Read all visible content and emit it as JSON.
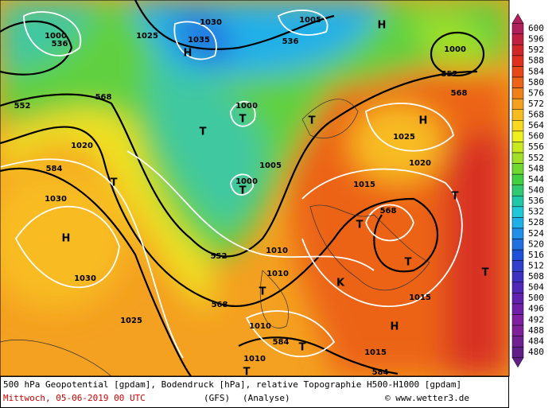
{
  "map": {
    "labels": [
      {
        "text": "536"
      },
      {
        "text": "1000"
      },
      {
        "text": "552"
      },
      {
        "text": "568"
      },
      {
        "text": "1035"
      },
      {
        "text": "H"
      },
      {
        "text": "1030"
      },
      {
        "text": "1025"
      },
      {
        "text": "536"
      },
      {
        "text": "1005"
      },
      {
        "text": "H"
      },
      {
        "text": "1000"
      },
      {
        "text": "552"
      },
      {
        "text": "568"
      },
      {
        "text": "H"
      },
      {
        "text": "1025"
      },
      {
        "text": "1000"
      },
      {
        "text": "T"
      },
      {
        "text": "T"
      },
      {
        "text": "T"
      },
      {
        "text": "1020"
      },
      {
        "text": "584"
      },
      {
        "text": "T"
      },
      {
        "text": "1030"
      },
      {
        "text": "H"
      },
      {
        "text": "1030"
      },
      {
        "text": "1025"
      },
      {
        "text": "T"
      },
      {
        "text": "1000"
      },
      {
        "text": "1005"
      },
      {
        "text": "1015"
      },
      {
        "text": "1020"
      },
      {
        "text": "T"
      },
      {
        "text": "568"
      },
      {
        "text": "T"
      },
      {
        "text": "552"
      },
      {
        "text": "1010"
      },
      {
        "text": "1010"
      },
      {
        "text": "T"
      },
      {
        "text": "K"
      },
      {
        "text": "T"
      },
      {
        "text": "568"
      },
      {
        "text": "1015"
      },
      {
        "text": "T"
      },
      {
        "text": "H"
      },
      {
        "text": "1010"
      },
      {
        "text": "584"
      },
      {
        "text": "T"
      },
      {
        "text": "1015"
      },
      {
        "text": "1010"
      },
      {
        "text": "584"
      },
      {
        "text": "T"
      }
    ]
  },
  "colorbar": {
    "levels": [
      600,
      596,
      592,
      588,
      584,
      580,
      576,
      572,
      568,
      564,
      560,
      556,
      552,
      548,
      544,
      540,
      536,
      532,
      528,
      524,
      520,
      516,
      512,
      508,
      504,
      500,
      496,
      492,
      488,
      484,
      480
    ],
    "colors": [
      "#b0205a",
      "#c02040",
      "#d02828",
      "#e03020",
      "#e84818",
      "#ec6418",
      "#f08018",
      "#f4a020",
      "#f8bc20",
      "#f8d820",
      "#f0f020",
      "#c8e820",
      "#a0e028",
      "#70d830",
      "#40d040",
      "#30c870",
      "#20c8a8",
      "#20c8d8",
      "#20b0e8",
      "#2090e8",
      "#2070e0",
      "#2050d8",
      "#3040c8",
      "#4030c0",
      "#5028b8",
      "#6020b0",
      "#7020a8",
      "#8020a0",
      "#802098",
      "#702090",
      "#602088"
    ]
  },
  "caption": {
    "line1": "500 hPa Geopotential [gpdam], Bodendruck [hPa], relative Topographie H500-H1000 [gpdam]",
    "date": "Mittwoch, 05-06-2019  00 UTC",
    "model": "(GFS)",
    "run": "(Analyse)",
    "credit": "© www.wetter3.de"
  }
}
